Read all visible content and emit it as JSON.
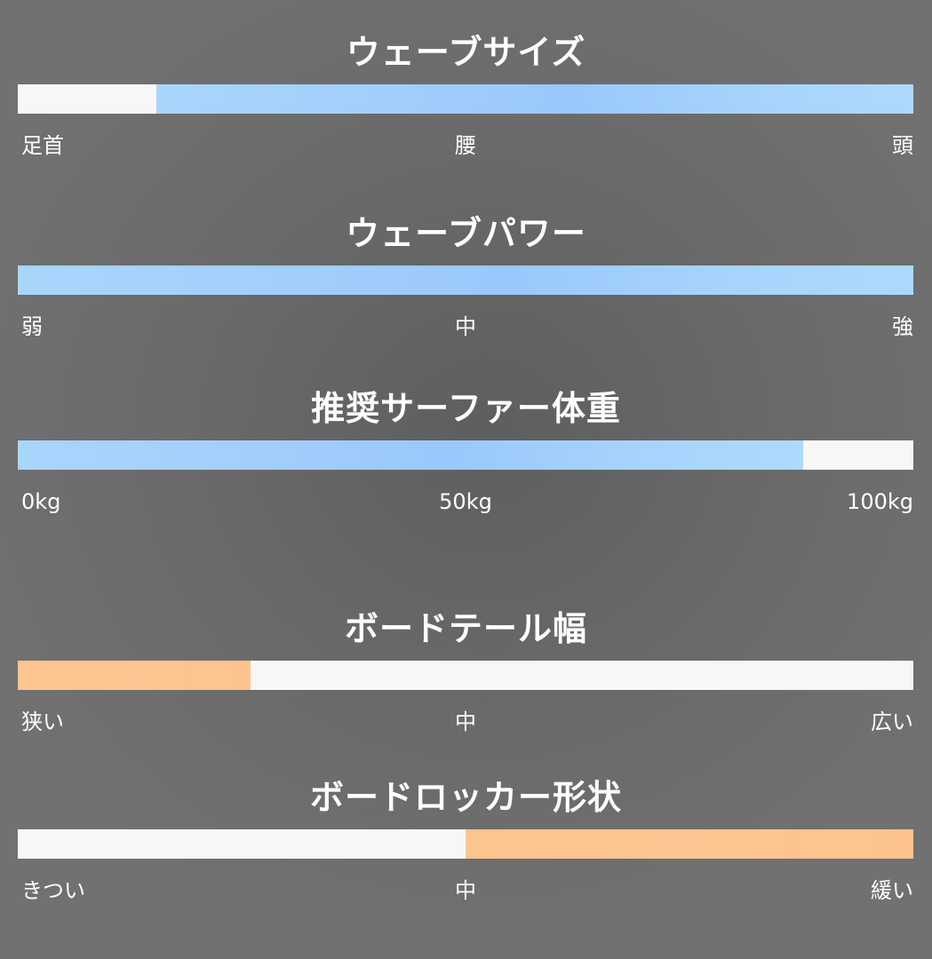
{
  "meters": [
    {
      "title": "ウェーブサイズ",
      "color": "blue",
      "fill_start": 0.155,
      "fill_end": 1.0,
      "labels": {
        "left": "足首",
        "mid": "腰",
        "right": "頭"
      }
    },
    {
      "title": "ウェーブパワー",
      "color": "blue",
      "fill_start": 0.0,
      "fill_end": 1.0,
      "labels": {
        "left": "弱",
        "mid": "中",
        "right": "強"
      }
    },
    {
      "title": "推奨サーファー体重",
      "color": "blue",
      "fill_start": 0.0,
      "fill_end": 0.877,
      "labels": {
        "left": "0kg",
        "mid": "50kg",
        "right": "100kg"
      }
    },
    {
      "title": "ボードテール幅",
      "color": "orange",
      "fill_start": 0.0,
      "fill_end": 0.26,
      "labels": {
        "left": "狭い",
        "mid": "中",
        "right": "広い"
      }
    },
    {
      "title": "ボードロッカー形状",
      "color": "orange",
      "fill_start": 0.5,
      "fill_end": 1.0,
      "labels": {
        "left": "きつい",
        "mid": "中",
        "right": "緩い"
      }
    }
  ],
  "colors": {
    "blue_fill": "#a4d0fb",
    "orange_fill": "#fcc48f",
    "track": "#f7f7f7",
    "background": "#666666",
    "text": "#ffffff"
  }
}
